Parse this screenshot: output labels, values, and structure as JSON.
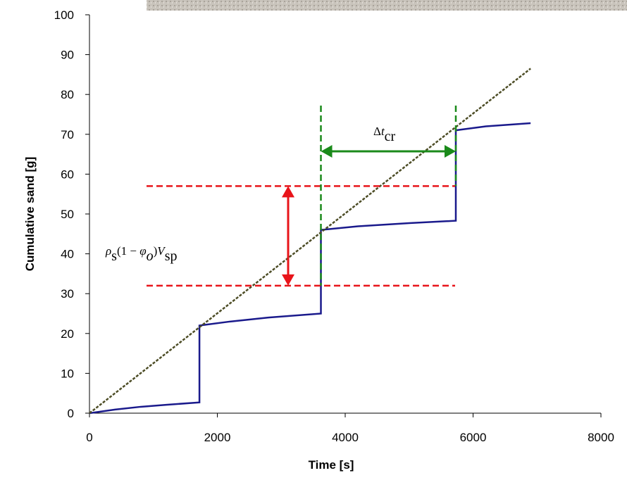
{
  "chart_data": {
    "type": "line",
    "xlabel": "Time [s]",
    "ylabel": "Cumulative sand [g]",
    "xlim": [
      0,
      8000
    ],
    "xticks": [
      0,
      2000,
      4000,
      6000,
      8000
    ],
    "ylim": [
      0,
      100
    ],
    "yticks": [
      0,
      10,
      20,
      30,
      40,
      50,
      60,
      70,
      80,
      90,
      100
    ],
    "series": [
      {
        "color": "#1a1a8c",
        "x": [
          0,
          400,
          800,
          1200,
          1720,
          1720,
          2200,
          2800,
          3620,
          3620,
          4200,
          5000,
          5730,
          5730,
          6200,
          6900
        ],
        "values": [
          0,
          0.9,
          1.6,
          2.1,
          2.7,
          22,
          23,
          24,
          25,
          46,
          46.9,
          47.7,
          48.3,
          71,
          72,
          72.8
        ]
      },
      {
        "color": "#4d4d26",
        "x": [
          0,
          6900
        ],
        "values": [
          0,
          86.5
        ]
      }
    ],
    "hlines": [
      57,
      32
    ],
    "vlines": [
      3620,
      5730
    ],
    "annotations": [
      {
        "parts": [
          "ρ",
          "s",
          "(1 − ",
          "φ",
          "o",
          ")",
          "V",
          "sp"
        ]
      },
      {
        "parts": [
          "Δ",
          "t",
          "cr"
        ]
      }
    ]
  }
}
